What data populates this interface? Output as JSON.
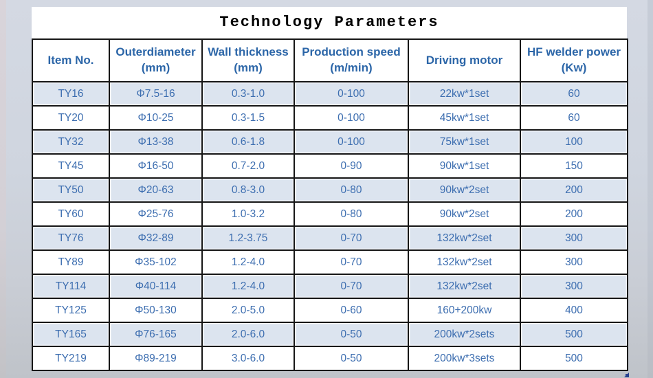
{
  "page": {
    "background_top_color": "#d4d9e3",
    "background_bottom_color": "#bfc3c9"
  },
  "table": {
    "title": "Technology Parameters",
    "columns": [
      "Item No.",
      "Outerdiameter\n(mm)",
      "Wall thickness\n(mm)",
      "Production speed\n(m/min)",
      "Driving motor",
      "HF welder power\n(Kw)"
    ],
    "rows": [
      [
        "TY16",
        "Φ7.5-16",
        "0.3-1.0",
        "0-100",
        "22kw*1set",
        "60"
      ],
      [
        "TY20",
        "Φ10-25",
        "0.3-1.5",
        "0-100",
        "45kw*1set",
        "60"
      ],
      [
        "TY32",
        "Φ13-38",
        "0.6-1.8",
        "0-100",
        "75kw*1set",
        "100"
      ],
      [
        "TY45",
        "Φ16-50",
        "0.7-2.0",
        "0-90",
        "90kw*1set",
        "150"
      ],
      [
        "TY50",
        "Φ20-63",
        "0.8-3.0",
        "0-80",
        "90kw*2set",
        "200"
      ],
      [
        "TY60",
        "Φ25-76",
        "1.0-3.2",
        "0-80",
        "90kw*2set",
        "200"
      ],
      [
        "TY76",
        "Φ32-89",
        "1.2-3.75",
        "0-70",
        "132kw*2set",
        "300"
      ],
      [
        "TY89",
        "Φ35-102",
        "1.2-4.0",
        "0-70",
        "132kw*2set",
        "300"
      ],
      [
        "TY114",
        "Φ40-114",
        "1.2-4.0",
        "0-70",
        "132kw*2set",
        "300"
      ],
      [
        "TY125",
        "Φ50-130",
        "2.0-5.0",
        "0-60",
        "160+200kw",
        "400"
      ],
      [
        "TY165",
        "Φ76-165",
        "2.0-6.0",
        "0-50",
        "200kw*2sets",
        "500"
      ],
      [
        "TY219",
        "Φ89-219",
        "3.0-6.0",
        "0-50",
        "200kw*3sets",
        "500"
      ]
    ],
    "colors": {
      "header_text": "#2c66a8",
      "cell_text": "#3d6eb0",
      "stripe_row": "#dce4ef",
      "border": "#161616",
      "fill_handle": "#27418f"
    }
  }
}
